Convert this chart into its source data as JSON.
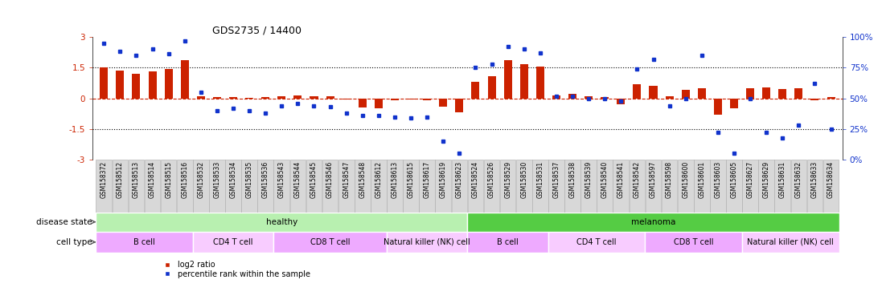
{
  "title": "GDS2735 / 14400",
  "samples": [
    "GSM158372",
    "GSM158512",
    "GSM158513",
    "GSM158514",
    "GSM158515",
    "GSM158516",
    "GSM158532",
    "GSM158533",
    "GSM158534",
    "GSM158535",
    "GSM158536",
    "GSM158543",
    "GSM158544",
    "GSM158545",
    "GSM158546",
    "GSM158547",
    "GSM158548",
    "GSM158612",
    "GSM158613",
    "GSM158615",
    "GSM158617",
    "GSM158619",
    "GSM158623",
    "GSM158524",
    "GSM158526",
    "GSM158529",
    "GSM158530",
    "GSM158531",
    "GSM158537",
    "GSM158538",
    "GSM158539",
    "GSM158540",
    "GSM158541",
    "GSM158542",
    "GSM158597",
    "GSM158598",
    "GSM158600",
    "GSM158601",
    "GSM158603",
    "GSM158605",
    "GSM158627",
    "GSM158629",
    "GSM158631",
    "GSM158632",
    "GSM158633",
    "GSM158634"
  ],
  "log2_ratio": [
    1.5,
    1.35,
    1.2,
    1.3,
    1.45,
    1.85,
    0.1,
    0.05,
    0.08,
    0.03,
    0.05,
    0.12,
    0.15,
    0.1,
    0.12,
    -0.05,
    -0.45,
    -0.5,
    -0.1,
    -0.05,
    -0.08,
    -0.4,
    -0.7,
    0.8,
    1.1,
    1.85,
    1.65,
    1.55,
    0.15,
    0.2,
    0.1,
    0.05,
    -0.3,
    0.7,
    0.6,
    0.1,
    0.4,
    0.5,
    -0.8,
    -0.5,
    0.5,
    0.55,
    0.45,
    0.5,
    -0.1,
    0.05
  ],
  "percentile": [
    95,
    88,
    85,
    90,
    86,
    97,
    55,
    40,
    42,
    40,
    38,
    44,
    46,
    44,
    43,
    38,
    36,
    36,
    35,
    34,
    35,
    15,
    5,
    75,
    78,
    92,
    90,
    87,
    52,
    52,
    50,
    50,
    48,
    74,
    82,
    44,
    50,
    85,
    22,
    5,
    50,
    22,
    18,
    28,
    62,
    25
  ],
  "disease_state_groups": [
    {
      "label": "healthy",
      "start": 0,
      "end": 23,
      "color": "#b8f0b0"
    },
    {
      "label": "melanoma",
      "start": 23,
      "end": 46,
      "color": "#55cc44"
    }
  ],
  "cell_type_groups": [
    {
      "label": "B cell",
      "start": 0,
      "end": 6,
      "color": "#eeaaff"
    },
    {
      "label": "CD4 T cell",
      "start": 6,
      "end": 11,
      "color": "#f8ccff"
    },
    {
      "label": "CD8 T cell",
      "start": 11,
      "end": 18,
      "color": "#eeaaff"
    },
    {
      "label": "Natural killer (NK) cell",
      "start": 18,
      "end": 23,
      "color": "#f8ccff"
    },
    {
      "label": "B cell",
      "start": 23,
      "end": 28,
      "color": "#eeaaff"
    },
    {
      "label": "CD4 T cell",
      "start": 28,
      "end": 34,
      "color": "#f8ccff"
    },
    {
      "label": "CD8 T cell",
      "start": 34,
      "end": 40,
      "color": "#eeaaff"
    },
    {
      "label": "Natural killer (NK) cell",
      "start": 40,
      "end": 46,
      "color": "#f8ccff"
    }
  ],
  "ylim": [
    -3,
    3
  ],
  "yticks": [
    -3,
    -1.5,
    0,
    1.5,
    3
  ],
  "y2ticks": [
    0,
    25,
    50,
    75,
    100
  ],
  "y2ticklabels": [
    "0%",
    "25%",
    "50%",
    "75%",
    "100%"
  ],
  "bar_color": "#cc2200",
  "dot_color": "#1133cc",
  "dotted_line_vals": [
    1.5,
    -1.5
  ],
  "title_fontsize": 9,
  "tick_label_fontsize": 5.5,
  "legend_items": [
    "log2 ratio",
    "percentile rank within the sample"
  ],
  "label_disease_state": "disease state",
  "label_cell_type": "cell type",
  "tick_box_color": "#d8d8d8",
  "tick_box_edge_color": "#aaaaaa"
}
